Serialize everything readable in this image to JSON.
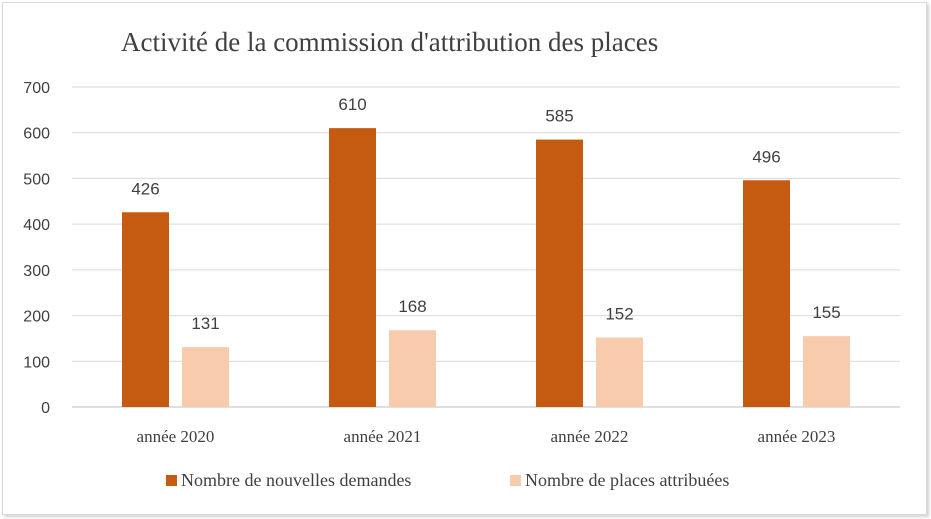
{
  "chart_data": {
    "type": "bar",
    "title": "Activité de la commission d'attribution des places",
    "categories": [
      "année 2020",
      "année 2021",
      "année 2022",
      "année 2023"
    ],
    "series": [
      {
        "name": "Nombre de nouvelles demandes",
        "values": [
          426,
          610,
          585,
          496
        ],
        "color": "#c55a11"
      },
      {
        "name": "Nombre de places attribuées",
        "values": [
          131,
          168,
          152,
          155
        ],
        "color": "#f8cbad"
      }
    ],
    "ylim": [
      0,
      700
    ],
    "yticks": [
      0,
      100,
      200,
      300,
      400,
      500,
      600,
      700
    ],
    "grid": true,
    "legend": "bottom"
  }
}
